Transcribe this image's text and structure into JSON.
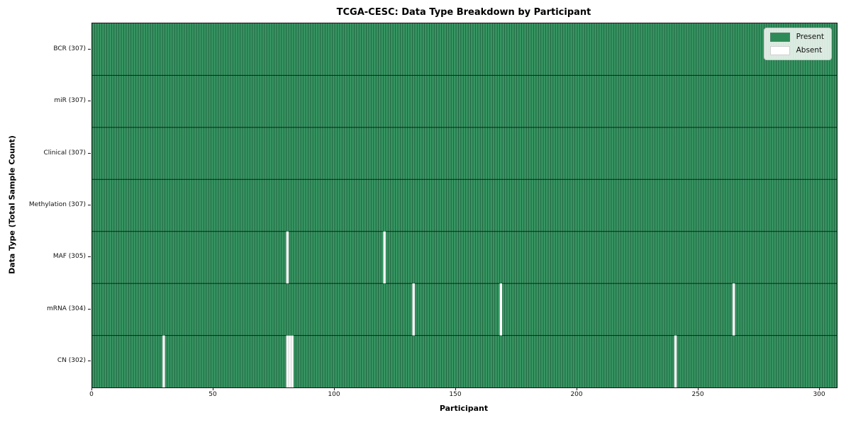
{
  "chart_data": {
    "type": "heatmap",
    "title": "TCGA-CESC: Data Type Breakdown by Participant",
    "xlabel": "Participant",
    "ylabel": "Data Type (Total Sample Count)",
    "n_participants": 307,
    "xlim": [
      0,
      307
    ],
    "x_ticks": [
      0,
      50,
      100,
      150,
      200,
      250,
      300
    ],
    "grid": false,
    "colors": {
      "present": "#2e8b57",
      "present_fill": "#379663",
      "cell_edge": "rgba(10, 40, 24, 0.55)",
      "row_divider": "rgba(0, 0, 0, 0.65)",
      "absent": "#ffffff",
      "absent_divider": "rgba(0, 0, 0, 0.18)"
    },
    "rows": [
      {
        "label": "BCR (307)",
        "data_type": "BCR",
        "total": 307,
        "absent_participants": []
      },
      {
        "label": "miR (307)",
        "data_type": "miR",
        "total": 307,
        "absent_participants": []
      },
      {
        "label": "Clinical (307)",
        "data_type": "Clinical",
        "total": 307,
        "absent_participants": []
      },
      {
        "label": "Methylation (307)",
        "data_type": "Methylation",
        "total": 307,
        "absent_participants": []
      },
      {
        "label": "MAF (305)",
        "data_type": "MAF",
        "total": 305,
        "absent_participants": [
          80,
          120
        ]
      },
      {
        "label": "mRNA (304)",
        "data_type": "mRNA",
        "total": 304,
        "absent_participants": [
          132,
          168,
          264
        ]
      },
      {
        "label": "CN (302)",
        "data_type": "CN",
        "total": 302,
        "absent_participants": [
          29,
          80,
          81,
          82,
          240
        ]
      }
    ],
    "legend": {
      "position": "upper right",
      "entries": [
        {
          "label": "Present",
          "color": "#2e8b57"
        },
        {
          "label": "Absent",
          "color": "#ffffff"
        }
      ]
    }
  }
}
